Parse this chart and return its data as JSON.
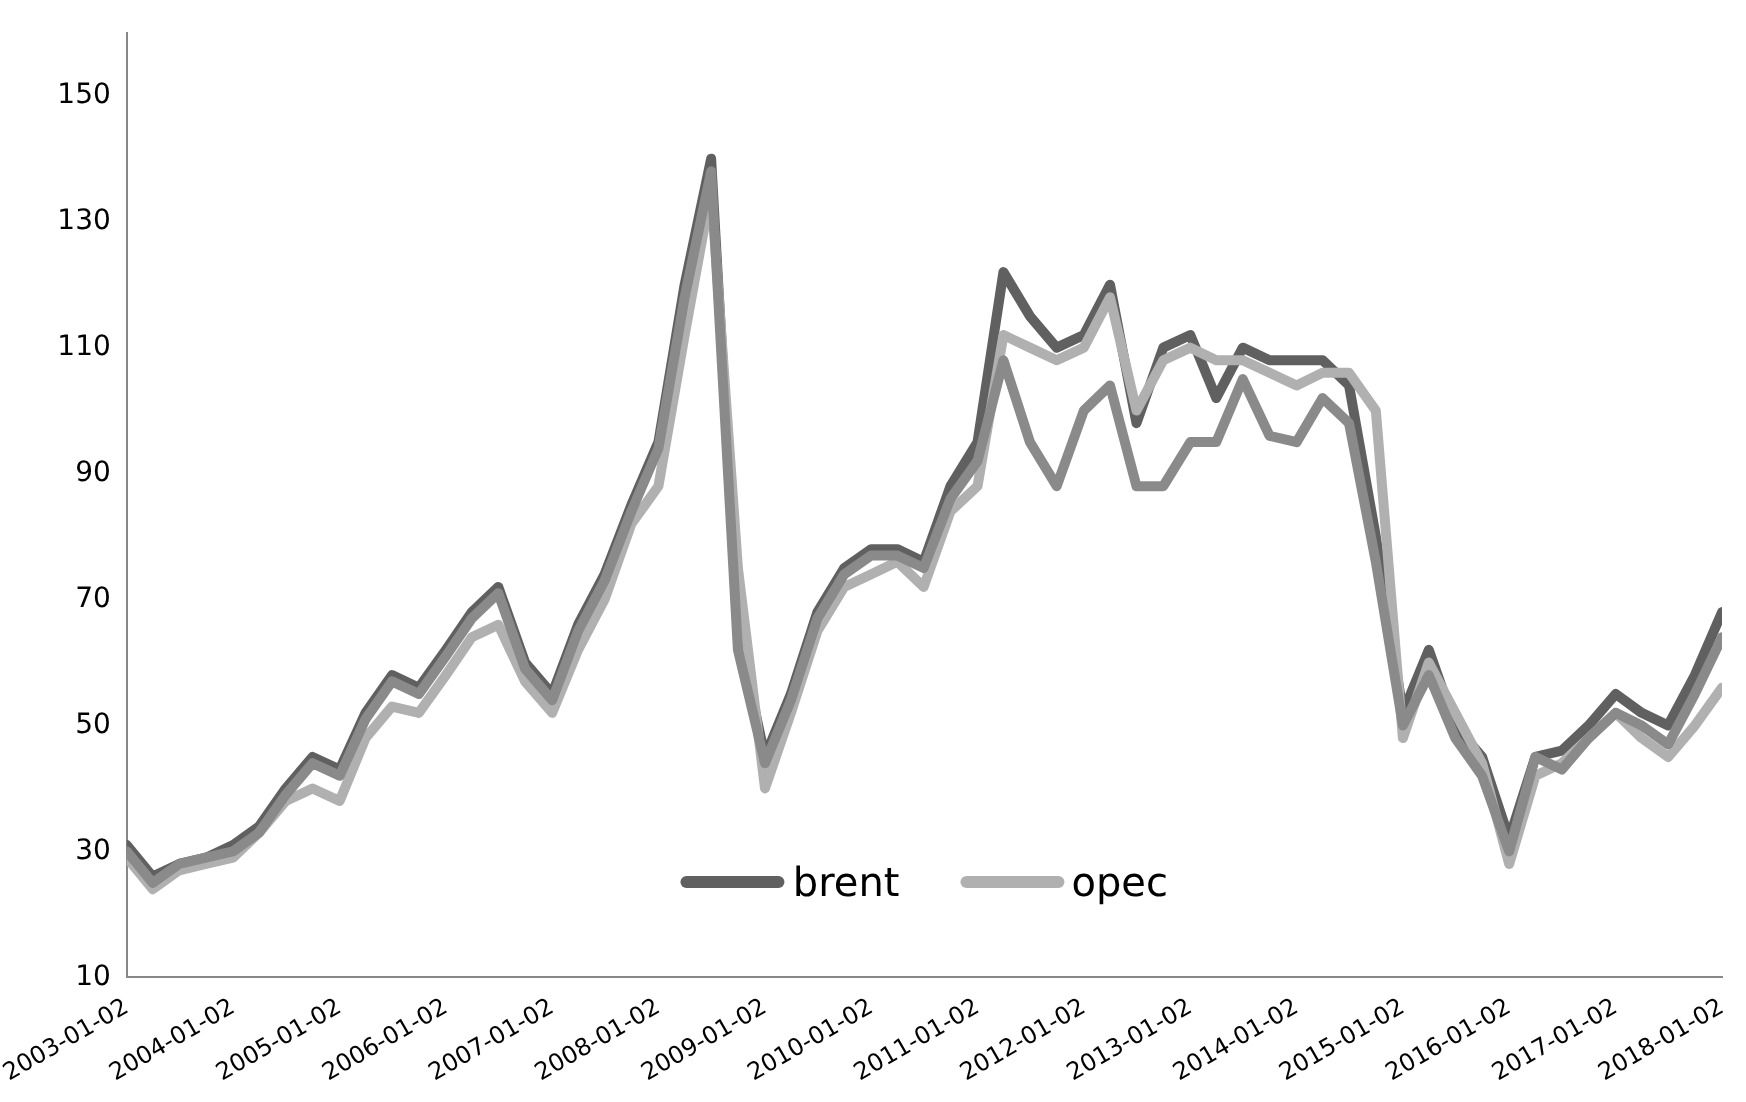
{
  "chart_data": {
    "type": "line",
    "x": [
      "2003-01-02",
      "2003-04-01",
      "2003-07-01",
      "2003-10-01",
      "2004-01-02",
      "2004-04-01",
      "2004-07-01",
      "2004-10-01",
      "2005-01-02",
      "2005-04-01",
      "2005-07-01",
      "2005-10-01",
      "2006-01-02",
      "2006-04-01",
      "2006-07-01",
      "2006-10-01",
      "2007-01-02",
      "2007-04-01",
      "2007-07-01",
      "2007-10-01",
      "2008-01-02",
      "2008-04-01",
      "2008-07-01",
      "2008-10-01",
      "2009-01-02",
      "2009-04-01",
      "2009-07-01",
      "2009-10-01",
      "2010-01-02",
      "2010-04-01",
      "2010-07-01",
      "2010-10-01",
      "2011-01-02",
      "2011-04-01",
      "2011-07-01",
      "2011-10-01",
      "2012-01-02",
      "2012-04-01",
      "2012-07-01",
      "2012-10-01",
      "2013-01-02",
      "2013-04-01",
      "2013-07-01",
      "2013-10-01",
      "2014-01-02",
      "2014-04-01",
      "2014-07-01",
      "2014-10-01",
      "2015-01-02",
      "2015-04-01",
      "2015-07-01",
      "2015-10-01",
      "2016-01-02",
      "2016-04-01",
      "2016-07-01",
      "2016-10-01",
      "2017-01-02",
      "2017-04-01",
      "2017-07-01",
      "2017-10-01",
      "2018-01-02"
    ],
    "series": [
      {
        "color": "#8a8a8a",
        "values": [
          30,
          25,
          28,
          29,
          30,
          33,
          39,
          44,
          42,
          51,
          57,
          55,
          61,
          67,
          71,
          59,
          54,
          65,
          73,
          84,
          94,
          118,
          138,
          62,
          44,
          54,
          67,
          74,
          77,
          77,
          75,
          86,
          92,
          108,
          95,
          88,
          100,
          104,
          88,
          88,
          95,
          95,
          105,
          96,
          95,
          102,
          98,
          76,
          50,
          58,
          48,
          42,
          30,
          45,
          43,
          48,
          52,
          50,
          47,
          55,
          64
        ]
      },
      {
        "name": "opec",
        "color": "#b0b0b0",
        "values": [
          29,
          24,
          27,
          28,
          29,
          33,
          38,
          40,
          38,
          48,
          53,
          52,
          58,
          64,
          66,
          57,
          52,
          62,
          70,
          82,
          88,
          112,
          135,
          75,
          40,
          52,
          65,
          72,
          74,
          76,
          72,
          84,
          88,
          112,
          110,
          108,
          110,
          118,
          100,
          108,
          110,
          108,
          108,
          106,
          104,
          106,
          106,
          100,
          48,
          60,
          52,
          44,
          28,
          42,
          44,
          48,
          52,
          48,
          45,
          50,
          56
        ]
      },
      {
        "name": "brent",
        "color": "#606060",
        "values": [
          31,
          26,
          28,
          29,
          31,
          34,
          40,
          45,
          43,
          52,
          58,
          56,
          62,
          68,
          72,
          60,
          55,
          66,
          74,
          85,
          95,
          120,
          140,
          65,
          45,
          55,
          68,
          75,
          78,
          78,
          76,
          88,
          95,
          122,
          115,
          110,
          112,
          120,
          98,
          110,
          112,
          102,
          110,
          108,
          108,
          108,
          104,
          80,
          52,
          62,
          50,
          45,
          32,
          45,
          46,
          50,
          55,
          52,
          50,
          58,
          68
        ]
      }
    ],
    "xlim": [
      "2003-01-02",
      "2018-01-02"
    ],
    "xticks": [
      "2003-01-02",
      "2004-01-02",
      "2005-01-02",
      "2006-01-02",
      "2007-01-02",
      "2008-01-02",
      "2009-01-02",
      "2010-01-02",
      "2011-01-02",
      "2012-01-02",
      "2013-01-02",
      "2014-01-02",
      "2015-01-02",
      "2016-01-02",
      "2017-01-02",
      "2018-01-02"
    ],
    "ylim": [
      10,
      160
    ],
    "yticks": [
      10,
      30,
      50,
      70,
      90,
      110,
      130,
      150
    ],
    "grid": false,
    "legend": "bottom",
    "marker": "none",
    "line_style": "solid"
  }
}
